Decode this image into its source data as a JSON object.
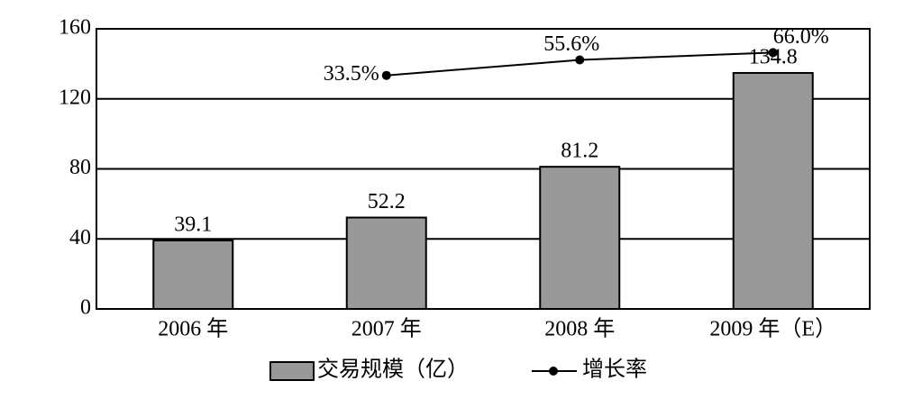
{
  "chart_data": {
    "type": "bar-line",
    "categories": [
      "2006 年",
      "2007 年",
      "2008 年",
      "2009 年（E）"
    ],
    "series": [
      {
        "name": "交易规模（亿）",
        "type": "bar",
        "color": "#999999",
        "values": [
          39.1,
          52.2,
          81.2,
          134.8
        ]
      },
      {
        "name": "增长率",
        "type": "line",
        "axis": "y2",
        "color": "#000000",
        "values": [
          null,
          33.5,
          55.6,
          66.0
        ],
        "value_labels": [
          null,
          "33.5%",
          "55.6%",
          "66.0%"
        ]
      }
    ],
    "ylim": [
      0,
      160
    ],
    "yticks": [
      0,
      40,
      80,
      120,
      160
    ],
    "y2lim": [
      -300,
      100
    ],
    "grid": true,
    "legend": "bottom"
  }
}
